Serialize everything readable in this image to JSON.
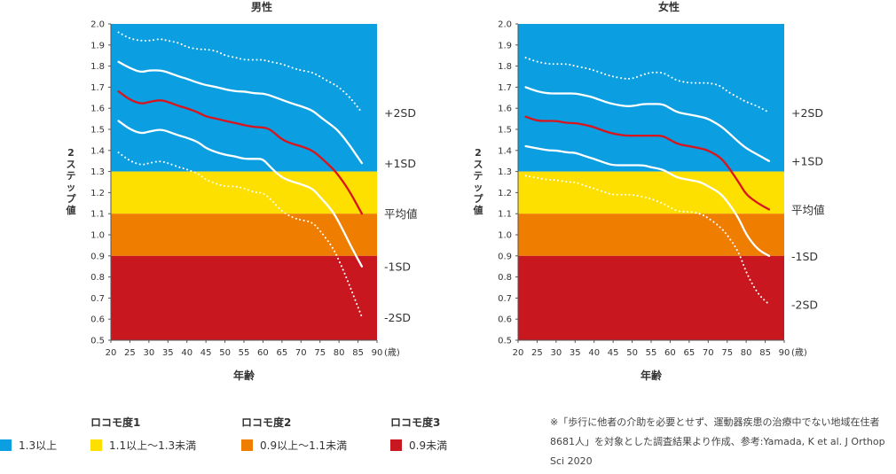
{
  "charts": [
    {
      "id": "male",
      "title": "男性",
      "series_y": {
        "+2SD": 1.58,
        "+1SD": 1.34,
        "平均値": 1.1,
        "-1SD": 0.85,
        "-2SD": 0.61
      }
    },
    {
      "id": "female",
      "title": "女性",
      "series_y": {
        "+2SD": 1.58,
        "+1SD": 1.35,
        "平均値": 1.12,
        "-1SD": 0.9,
        "-2SD": 0.67
      }
    }
  ],
  "chart_data": [
    {
      "type": "line",
      "title": "男性",
      "xlabel": "年齢",
      "ylabel": "2ステップ値",
      "x_unit": "(歳)",
      "xlim": [
        20,
        90
      ],
      "ylim": [
        0.5,
        2.0
      ],
      "xticks": [
        20,
        25,
        30,
        35,
        40,
        45,
        50,
        55,
        60,
        65,
        70,
        75,
        80,
        85,
        90
      ],
      "yticks": [
        0.5,
        0.6,
        0.7,
        0.8,
        0.9,
        1.0,
        1.1,
        1.2,
        1.3,
        1.4,
        1.5,
        1.6,
        1.7,
        1.8,
        1.9,
        2.0
      ],
      "bands": [
        {
          "from": 1.3,
          "to": 2.0,
          "color": "#0b9ee0"
        },
        {
          "from": 1.1,
          "to": 1.3,
          "color": "#fde000"
        },
        {
          "from": 0.9,
          "to": 1.1,
          "color": "#ef7d00"
        },
        {
          "from": 0.5,
          "to": 0.9,
          "color": "#c8171e"
        }
      ],
      "x": [
        22,
        25,
        28,
        30,
        33,
        35,
        38,
        40,
        43,
        45,
        48,
        50,
        53,
        55,
        58,
        60,
        62,
        65,
        68,
        70,
        73,
        75,
        78,
        80,
        83,
        86
      ],
      "series": [
        {
          "name": "+2SD",
          "style": "dotted",
          "color": "#ffffff",
          "values": [
            1.96,
            1.93,
            1.92,
            1.92,
            1.93,
            1.92,
            1.91,
            1.89,
            1.88,
            1.88,
            1.87,
            1.85,
            1.84,
            1.83,
            1.83,
            1.83,
            1.82,
            1.81,
            1.79,
            1.78,
            1.77,
            1.75,
            1.72,
            1.7,
            1.65,
            1.58
          ]
        },
        {
          "name": "+1SD",
          "style": "solid",
          "color": "#ffffff",
          "values": [
            1.82,
            1.79,
            1.77,
            1.78,
            1.78,
            1.77,
            1.75,
            1.74,
            1.72,
            1.71,
            1.7,
            1.69,
            1.68,
            1.68,
            1.67,
            1.67,
            1.66,
            1.64,
            1.62,
            1.61,
            1.59,
            1.56,
            1.52,
            1.49,
            1.42,
            1.34
          ]
        },
        {
          "name": "平均値",
          "style": "solid",
          "color": "#d9141c",
          "values": [
            1.68,
            1.64,
            1.62,
            1.63,
            1.64,
            1.63,
            1.61,
            1.6,
            1.58,
            1.56,
            1.55,
            1.54,
            1.53,
            1.52,
            1.51,
            1.51,
            1.5,
            1.45,
            1.43,
            1.42,
            1.4,
            1.37,
            1.32,
            1.28,
            1.2,
            1.1
          ]
        },
        {
          "name": "-1SD",
          "style": "solid",
          "color": "#ffffff",
          "values": [
            1.54,
            1.5,
            1.48,
            1.49,
            1.5,
            1.49,
            1.47,
            1.46,
            1.44,
            1.41,
            1.39,
            1.38,
            1.37,
            1.36,
            1.36,
            1.36,
            1.32,
            1.27,
            1.25,
            1.24,
            1.22,
            1.18,
            1.12,
            1.06,
            0.95,
            0.85
          ]
        },
        {
          "name": "-2SD",
          "style": "dotted",
          "color": "#ffffff",
          "values": [
            1.39,
            1.35,
            1.33,
            1.34,
            1.35,
            1.34,
            1.32,
            1.31,
            1.29,
            1.26,
            1.24,
            1.23,
            1.23,
            1.22,
            1.2,
            1.2,
            1.17,
            1.11,
            1.08,
            1.07,
            1.06,
            1.02,
            0.95,
            0.88,
            0.75,
            0.61
          ]
        }
      ]
    },
    {
      "type": "line",
      "title": "女性",
      "xlabel": "年齢",
      "ylabel": "2ステップ値",
      "x_unit": "(歳)",
      "xlim": [
        20,
        90
      ],
      "ylim": [
        0.5,
        2.0
      ],
      "xticks": [
        20,
        25,
        30,
        35,
        40,
        45,
        50,
        55,
        60,
        65,
        70,
        75,
        80,
        85,
        90
      ],
      "yticks": [
        0.5,
        0.6,
        0.7,
        0.8,
        0.9,
        1.0,
        1.1,
        1.2,
        1.3,
        1.4,
        1.5,
        1.6,
        1.7,
        1.8,
        1.9,
        2.0
      ],
      "bands": [
        {
          "from": 1.3,
          "to": 2.0,
          "color": "#0b9ee0"
        },
        {
          "from": 1.1,
          "to": 1.3,
          "color": "#fde000"
        },
        {
          "from": 0.9,
          "to": 1.1,
          "color": "#ef7d00"
        },
        {
          "from": 0.5,
          "to": 0.9,
          "color": "#c8171e"
        }
      ],
      "x": [
        22,
        25,
        28,
        30,
        33,
        35,
        38,
        40,
        43,
        45,
        48,
        50,
        53,
        55,
        58,
        60,
        62,
        65,
        68,
        70,
        73,
        75,
        78,
        80,
        83,
        86
      ],
      "series": [
        {
          "name": "+2SD",
          "style": "dotted",
          "color": "#ffffff",
          "values": [
            1.84,
            1.82,
            1.81,
            1.81,
            1.81,
            1.8,
            1.79,
            1.78,
            1.76,
            1.75,
            1.74,
            1.74,
            1.76,
            1.77,
            1.77,
            1.75,
            1.73,
            1.72,
            1.72,
            1.72,
            1.71,
            1.68,
            1.65,
            1.63,
            1.61,
            1.58
          ]
        },
        {
          "name": "+1SD",
          "style": "solid",
          "color": "#ffffff",
          "values": [
            1.7,
            1.68,
            1.67,
            1.67,
            1.67,
            1.67,
            1.66,
            1.65,
            1.63,
            1.62,
            1.61,
            1.61,
            1.62,
            1.62,
            1.62,
            1.6,
            1.58,
            1.57,
            1.56,
            1.55,
            1.52,
            1.49,
            1.44,
            1.41,
            1.38,
            1.35
          ]
        },
        {
          "name": "平均値",
          "style": "solid",
          "color": "#d9141c",
          "values": [
            1.56,
            1.54,
            1.54,
            1.54,
            1.53,
            1.53,
            1.52,
            1.51,
            1.49,
            1.48,
            1.47,
            1.47,
            1.47,
            1.47,
            1.47,
            1.45,
            1.43,
            1.42,
            1.41,
            1.4,
            1.37,
            1.33,
            1.25,
            1.19,
            1.15,
            1.12
          ]
        },
        {
          "name": "-1SD",
          "style": "solid",
          "color": "#ffffff",
          "values": [
            1.42,
            1.41,
            1.4,
            1.4,
            1.39,
            1.39,
            1.37,
            1.36,
            1.34,
            1.33,
            1.33,
            1.33,
            1.33,
            1.32,
            1.31,
            1.29,
            1.27,
            1.26,
            1.25,
            1.23,
            1.2,
            1.16,
            1.08,
            1.0,
            0.93,
            0.9
          ]
        },
        {
          "name": "-2SD",
          "style": "dotted",
          "color": "#ffffff",
          "values": [
            1.28,
            1.27,
            1.26,
            1.26,
            1.25,
            1.25,
            1.23,
            1.22,
            1.2,
            1.19,
            1.19,
            1.19,
            1.18,
            1.17,
            1.15,
            1.13,
            1.11,
            1.11,
            1.1,
            1.08,
            1.04,
            1.0,
            0.92,
            0.82,
            0.72,
            0.67
          ]
        }
      ]
    }
  ],
  "legend": {
    "groups": [
      {
        "heading": "",
        "label": "1.3以上",
        "color": "#0b9ee0"
      },
      {
        "heading": "ロコモ度1",
        "label": "1.1以上～1.3未満",
        "color": "#fde000"
      },
      {
        "heading": "ロコモ度2",
        "label": "0.9以上～1.1未満",
        "color": "#ef7d00"
      },
      {
        "heading": "ロコモ度3",
        "label": "0.9未満",
        "color": "#c8171e"
      }
    ]
  },
  "note": "※「歩行に他者の介助を必要とせず、運動器疾患の治療中でない地域在住者8681人」を対象とした調査結果より作成、参考:Yamada, K et al. J Orthop Sci 2020"
}
